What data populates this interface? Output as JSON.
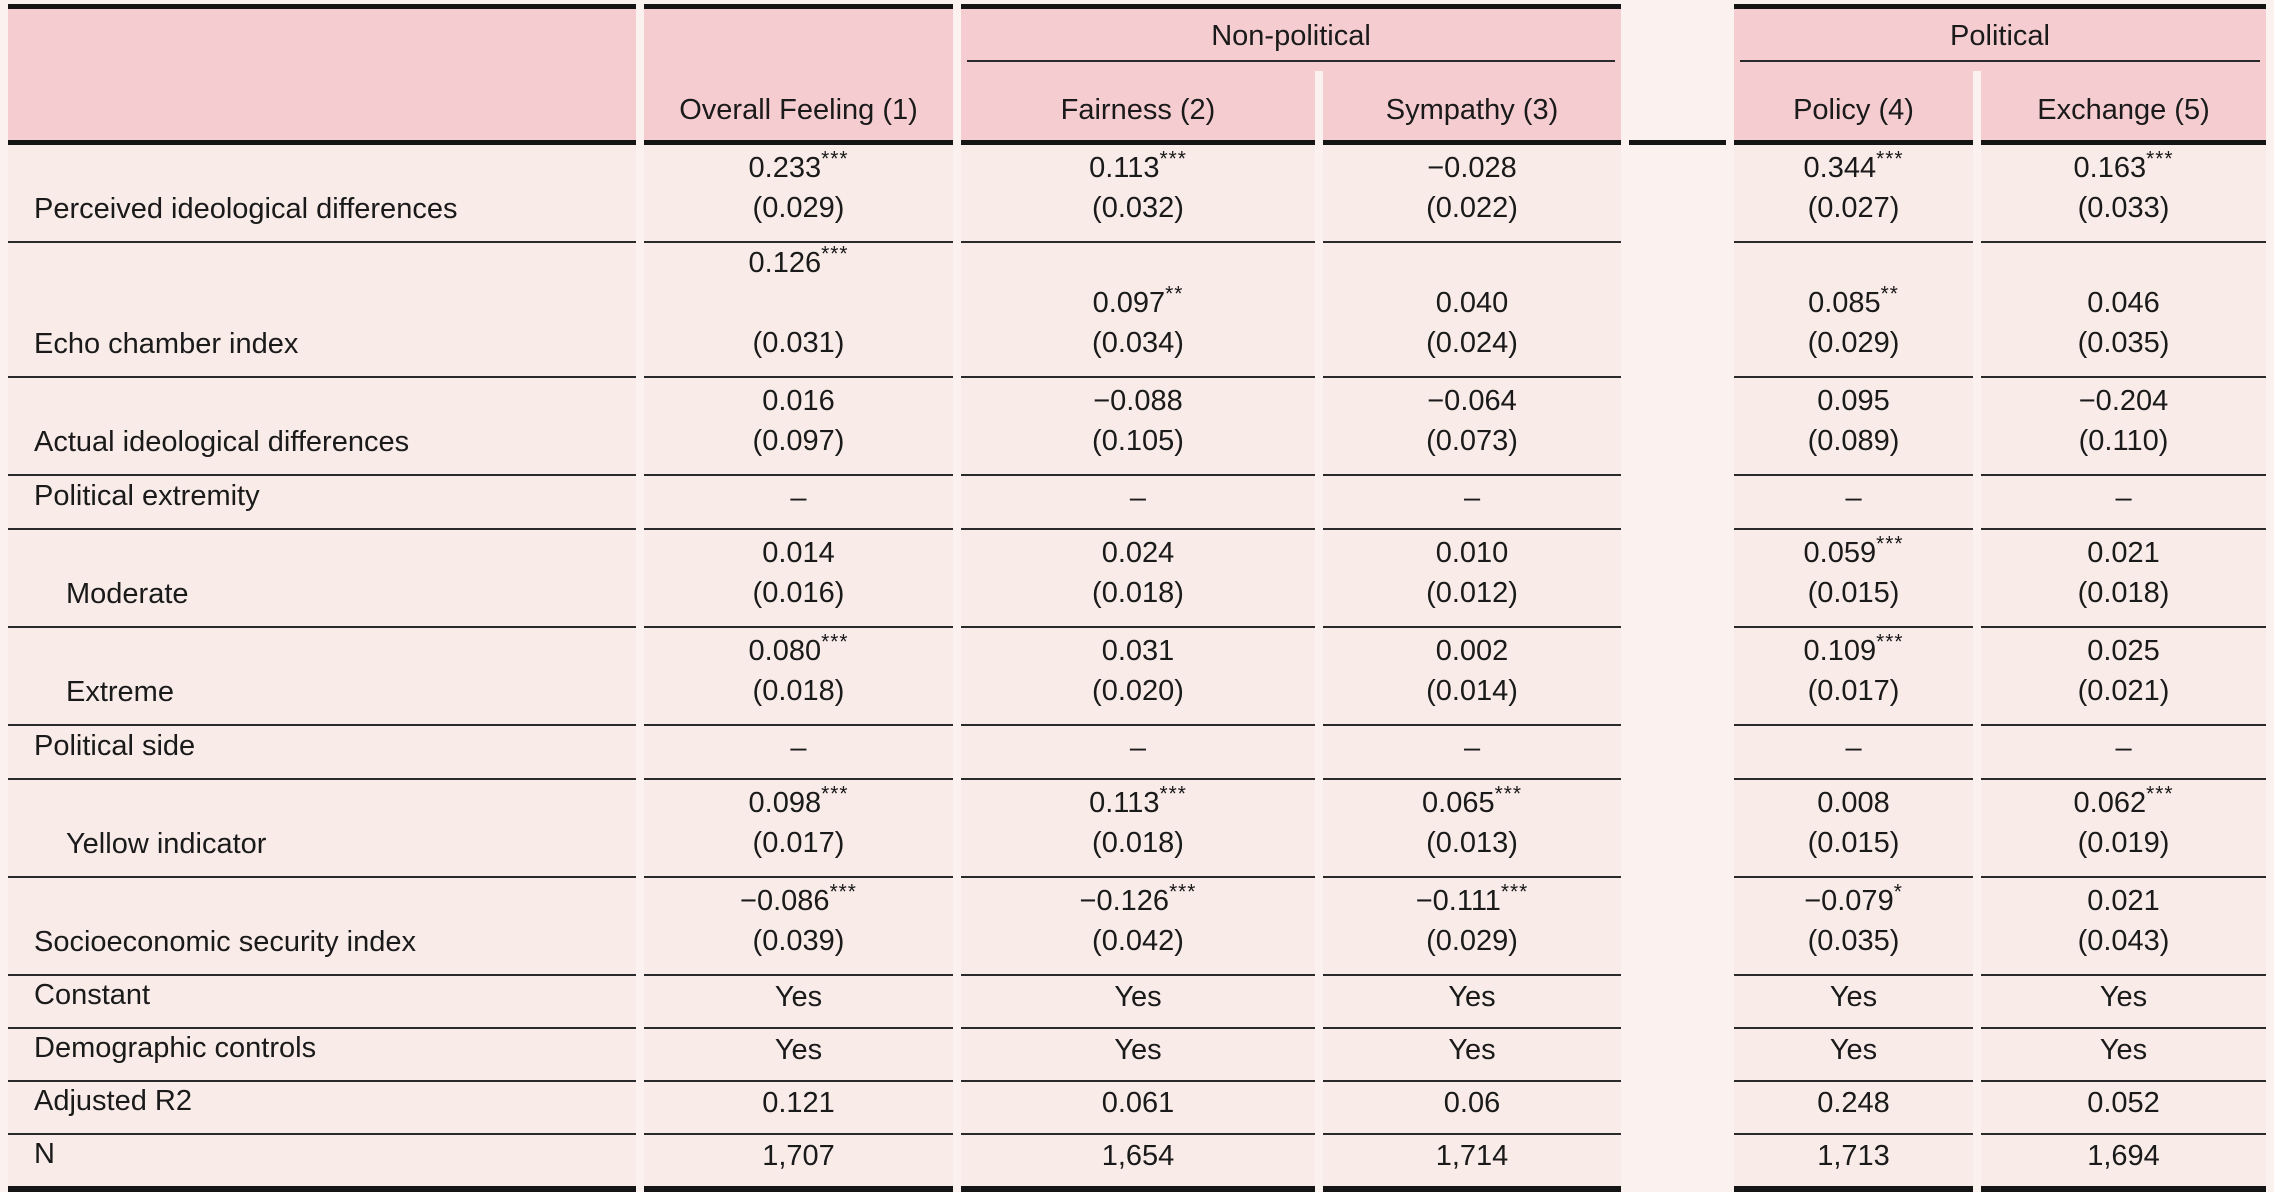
{
  "colors": {
    "header_bg": "#f5cdd1",
    "body_bg": "#f8ebe8",
    "gap_bg": "#fbf1ef",
    "rule": "#151515"
  },
  "table": {
    "groups": [
      "Non-political",
      "Political"
    ],
    "columns": [
      "Overall Feeling (1)",
      "Fairness (2)",
      "Sympathy (3)",
      "Policy (4)",
      "Exchange (5)"
    ],
    "significance_marks": {
      "one_star": "*",
      "two_star": "**",
      "three_star": "***"
    },
    "rows": [
      {
        "label": "Perceived ideological differences",
        "kind": "coef",
        "indent": false,
        "cells": [
          {
            "est": "0.233",
            "stars": "***",
            "se": "(0.029)"
          },
          {
            "est": "0.113",
            "stars": "***",
            "se": "(0.032)"
          },
          {
            "est": "−0.028",
            "stars": "",
            "se": "(0.022)"
          },
          {
            "est": "0.344",
            "stars": "***",
            "se": "(0.027)"
          },
          {
            "est": "0.163",
            "stars": "***",
            "se": "(0.033)"
          }
        ]
      },
      {
        "label": "Echo chamber index",
        "kind": "coef",
        "indent": false,
        "offset_first": true,
        "cells": [
          {
            "est": "0.126",
            "stars": "***",
            "se": "(0.031)"
          },
          {
            "est": "0.097",
            "stars": "**",
            "se": "(0.034)"
          },
          {
            "est": "0.040",
            "stars": "",
            "se": "(0.024)"
          },
          {
            "est": "0.085",
            "stars": "**",
            "se": "(0.029)"
          },
          {
            "est": "0.046",
            "stars": "",
            "se": "(0.035)"
          }
        ]
      },
      {
        "label": "Actual ideological differences",
        "kind": "coef",
        "indent": false,
        "cells": [
          {
            "est": "0.016",
            "stars": "",
            "se": "(0.097)"
          },
          {
            "est": "−0.088",
            "stars": "",
            "se": "(0.105)"
          },
          {
            "est": "−0.064",
            "stars": "",
            "se": "(0.073)"
          },
          {
            "est": "0.095",
            "stars": "",
            "se": "(0.089)"
          },
          {
            "est": "−0.204",
            "stars": "",
            "se": "(0.110)"
          }
        ]
      },
      {
        "label": "Political extremity",
        "kind": "dash",
        "indent": false,
        "dash": "–"
      },
      {
        "label": "Moderate",
        "kind": "coef",
        "indent": true,
        "cells": [
          {
            "est": "0.014",
            "stars": "",
            "se": "(0.016)"
          },
          {
            "est": "0.024",
            "stars": "",
            "se": "(0.018)"
          },
          {
            "est": "0.010",
            "stars": "",
            "se": "(0.012)"
          },
          {
            "est": "0.059",
            "stars": "***",
            "se": "(0.015)"
          },
          {
            "est": "0.021",
            "stars": "",
            "se": "(0.018)"
          }
        ]
      },
      {
        "label": "Extreme",
        "kind": "coef",
        "indent": true,
        "cells": [
          {
            "est": "0.080",
            "stars": "***",
            "se": "(0.018)"
          },
          {
            "est": "0.031",
            "stars": "",
            "se": "(0.020)"
          },
          {
            "est": "0.002",
            "stars": "",
            "se": "(0.014)"
          },
          {
            "est": "0.109",
            "stars": "***",
            "se": "(0.017)"
          },
          {
            "est": "0.025",
            "stars": "",
            "se": "(0.021)"
          }
        ]
      },
      {
        "label": "Political side",
        "kind": "dash",
        "indent": false,
        "dash": "–"
      },
      {
        "label": "Yellow indicator",
        "kind": "coef",
        "indent": true,
        "cells": [
          {
            "est": "0.098",
            "stars": "***",
            "se": "(0.017)"
          },
          {
            "est": "0.113",
            "stars": "***",
            "se": "(0.018)"
          },
          {
            "est": "0.065",
            "stars": "***",
            "se": "(0.013)"
          },
          {
            "est": "0.008",
            "stars": "",
            "se": "(0.015)"
          },
          {
            "est": "0.062",
            "stars": "***",
            "se": "(0.019)"
          }
        ]
      },
      {
        "label": "Socioeconomic security index",
        "kind": "coef",
        "indent": false,
        "cells": [
          {
            "est": "−0.086",
            "stars": "***",
            "se": "(0.039)"
          },
          {
            "est": "−0.126",
            "stars": "***",
            "se": "(0.042)"
          },
          {
            "est": "−0.111",
            "stars": "***",
            "se": "(0.029)"
          },
          {
            "est": "−0.079",
            "stars": "*",
            "se": "(0.035)"
          },
          {
            "est": "0.021",
            "stars": "",
            "se": "(0.043)"
          }
        ]
      },
      {
        "label": "Constant",
        "kind": "plain",
        "indent": false,
        "values": [
          "Yes",
          "Yes",
          "Yes",
          "Yes",
          "Yes"
        ]
      },
      {
        "label": "Demographic controls",
        "kind": "plain",
        "indent": false,
        "values": [
          "Yes",
          "Yes",
          "Yes",
          "Yes",
          "Yes"
        ]
      },
      {
        "label": "Adjusted R2",
        "kind": "plain",
        "indent": false,
        "values": [
          "0.121",
          "0.061",
          "0.06",
          "0.248",
          "0.052"
        ]
      },
      {
        "label": "N",
        "kind": "plain",
        "indent": false,
        "values": [
          "1,707",
          "1,654",
          "1,714",
          "1,713",
          "1,694"
        ]
      }
    ]
  }
}
